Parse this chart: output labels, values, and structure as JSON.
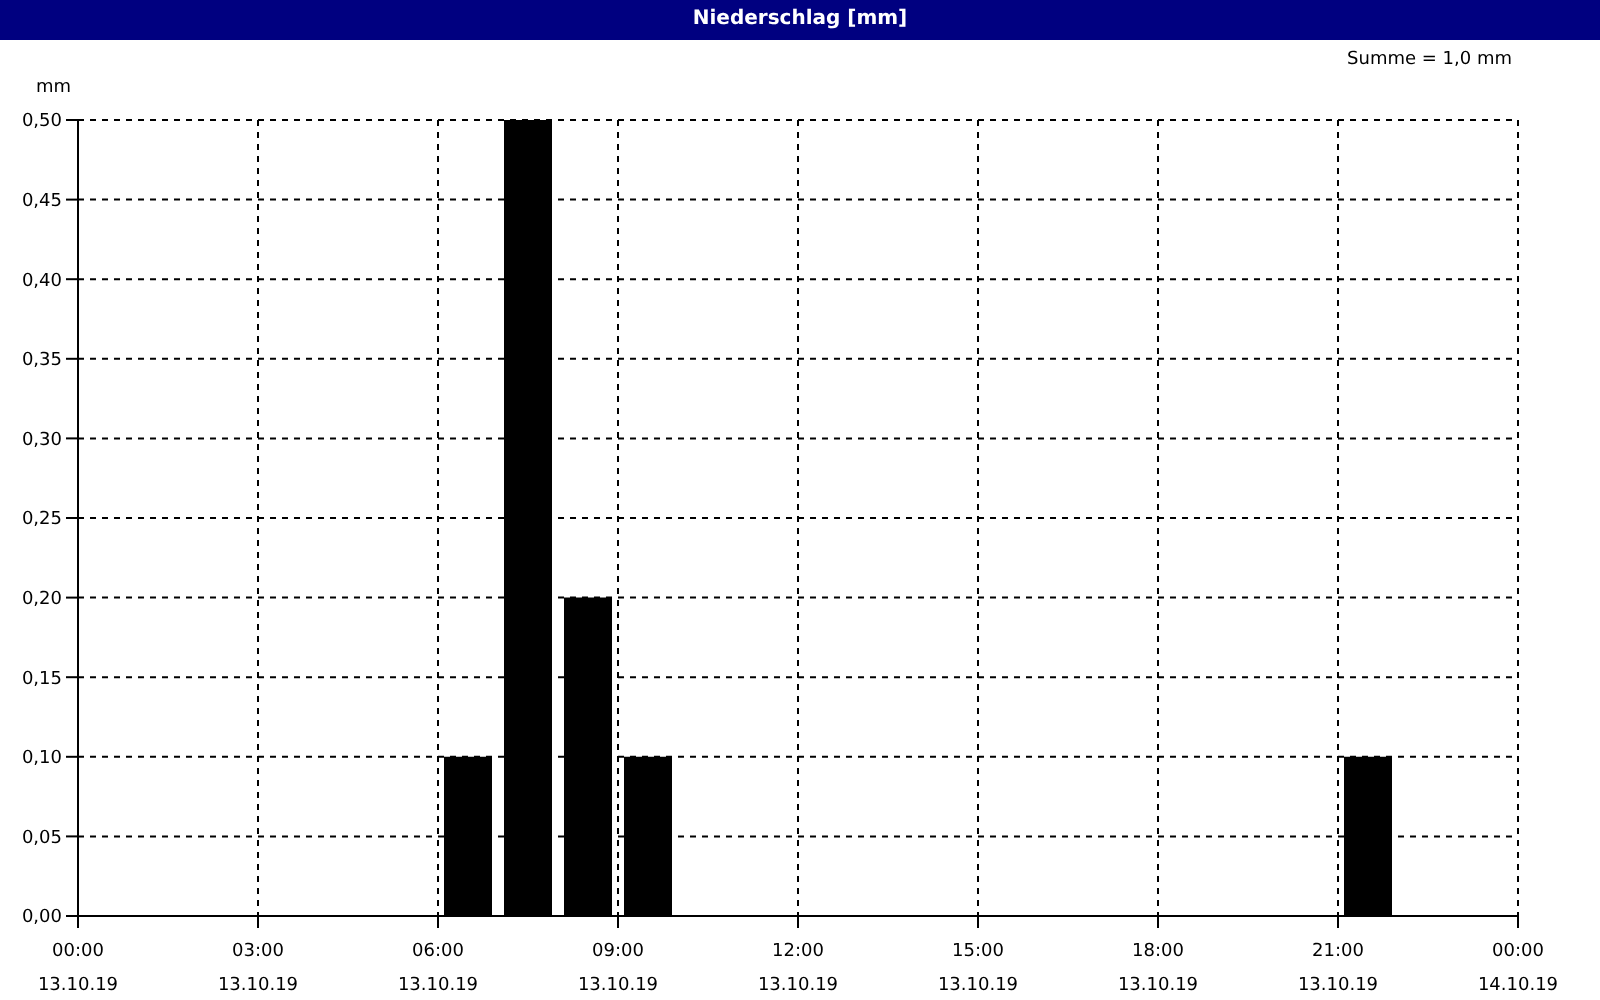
{
  "chart_data": {
    "type": "bar",
    "title": "Niederschlag [mm]",
    "ylabel": "mm",
    "annotations": [
      "Summe = 1,0 mm"
    ],
    "x": [
      "--10-13T06:30",
      "--10-13T07:30",
      "--10-13T08:30",
      "--10-13T09:30",
      "--10-13T21:30"
    ],
    "values": [
      0.1,
      0.5,
      0.2,
      0.1,
      0.1
    ],
    "color": "#000000",
    "xlim": [
      "--10-13T00:00",
      "--10-14T00:00"
    ],
    "xticks": [
      {
        "value": "--10-13T00:00",
        "label": "00:00\n13.10.19"
      },
      {
        "value": "--10-13T03:00",
        "label": "03:00\n13.10.19"
      },
      {
        "value": "--10-13T06:00",
        "label": "06:00\n13.10.19"
      },
      {
        "value": "--10-13T09:00",
        "label": "09:00\n13.10.19"
      },
      {
        "value": "--10-13T12:00",
        "label": "12:00\n13.10.19"
      },
      {
        "value": "--10-13T15:00",
        "label": "15:00\n13.10.19"
      },
      {
        "value": "--10-13T18:00",
        "label": "18:00\n13.10.19"
      },
      {
        "value": "--10-13T21:00",
        "label": "21:00\n13.10.19"
      },
      {
        "value": "--10-14T00:00",
        "label": "00:00\n14.10.19"
      }
    ],
    "ylim": [
      0,
      0.5
    ],
    "yticks": [
      {
        "value": 0,
        "label": "0,00"
      },
      {
        "value": 0.05,
        "label": "0,05"
      },
      {
        "value": 0.1,
        "label": "0,10"
      },
      {
        "value": 0.15,
        "label": "0,15"
      },
      {
        "value": 0.2,
        "label": "0,20"
      },
      {
        "value": 0.25,
        "label": "0,25"
      },
      {
        "value": 0.3,
        "label": "0,30"
      },
      {
        "value": 0.35,
        "label": "0,35"
      },
      {
        "value": 0.4,
        "label": "0,40"
      },
      {
        "value": 0.45,
        "label": "0,45"
      },
      {
        "value": 0.5,
        "label": "0,50"
      }
    ],
    "grid": true
  }
}
